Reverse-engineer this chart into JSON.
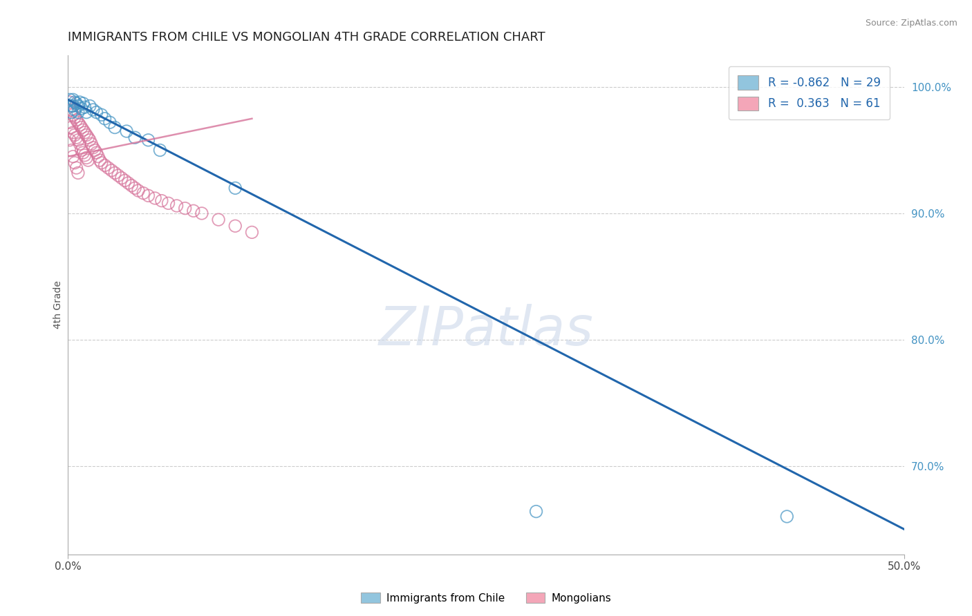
{
  "title": "IMMIGRANTS FROM CHILE VS MONGOLIAN 4TH GRADE CORRELATION CHART",
  "source": "Source: ZipAtlas.com",
  "ylabel": "4th Grade",
  "xlim": [
    0.0,
    0.5
  ],
  "ylim": [
    0.63,
    1.025
  ],
  "xtick_positions": [
    0.0,
    0.5
  ],
  "xticklabels": [
    "0.0%",
    "50.0%"
  ],
  "ytick_positions": [
    0.7,
    0.8,
    0.9,
    1.0
  ],
  "yticklabels": [
    "70.0%",
    "80.0%",
    "90.0%",
    "100.0%"
  ],
  "blue_color": "#92c5de",
  "blue_edge_color": "#4393c3",
  "pink_color": "#f4a6b8",
  "pink_edge_color": "#d6739a",
  "trend_color": "#2166ac",
  "legend_blue_R": "-0.862",
  "legend_blue_N": "29",
  "legend_pink_R": "0.363",
  "legend_pink_N": "61",
  "legend_label_blue": "Immigrants from Chile",
  "legend_label_pink": "Mongolians",
  "watermark": "ZIPatlas",
  "blue_scatter_x": [
    0.001,
    0.002,
    0.002,
    0.003,
    0.003,
    0.004,
    0.004,
    0.005,
    0.006,
    0.006,
    0.007,
    0.008,
    0.009,
    0.01,
    0.011,
    0.013,
    0.015,
    0.017,
    0.02,
    0.022,
    0.025,
    0.028,
    0.035,
    0.04,
    0.048,
    0.055,
    0.1,
    0.28,
    0.43
  ],
  "blue_scatter_y": [
    0.99,
    0.985,
    0.98,
    0.99,
    0.985,
    0.988,
    0.982,
    0.987,
    0.985,
    0.98,
    0.988,
    0.983,
    0.987,
    0.984,
    0.98,
    0.985,
    0.982,
    0.98,
    0.978,
    0.975,
    0.972,
    0.968,
    0.965,
    0.96,
    0.958,
    0.95,
    0.92,
    0.664,
    0.66
  ],
  "pink_scatter_x": [
    0.001,
    0.001,
    0.001,
    0.002,
    0.002,
    0.002,
    0.003,
    0.003,
    0.003,
    0.004,
    0.004,
    0.004,
    0.005,
    0.005,
    0.005,
    0.006,
    0.006,
    0.006,
    0.007,
    0.007,
    0.008,
    0.008,
    0.009,
    0.009,
    0.01,
    0.01,
    0.011,
    0.011,
    0.012,
    0.012,
    0.013,
    0.014,
    0.015,
    0.016,
    0.017,
    0.018,
    0.019,
    0.02,
    0.022,
    0.024,
    0.026,
    0.028,
    0.03,
    0.032,
    0.034,
    0.036,
    0.038,
    0.04,
    0.042,
    0.045,
    0.048,
    0.052,
    0.056,
    0.06,
    0.065,
    0.07,
    0.075,
    0.08,
    0.09,
    0.1,
    0.11
  ],
  "pink_scatter_y": [
    0.988,
    0.972,
    0.958,
    0.982,
    0.968,
    0.95,
    0.978,
    0.964,
    0.945,
    0.976,
    0.962,
    0.94,
    0.974,
    0.96,
    0.936,
    0.972,
    0.958,
    0.932,
    0.97,
    0.955,
    0.968,
    0.95,
    0.966,
    0.948,
    0.964,
    0.946,
    0.962,
    0.944,
    0.96,
    0.942,
    0.958,
    0.955,
    0.952,
    0.95,
    0.948,
    0.945,
    0.942,
    0.94,
    0.938,
    0.936,
    0.934,
    0.932,
    0.93,
    0.928,
    0.926,
    0.924,
    0.922,
    0.92,
    0.918,
    0.916,
    0.914,
    0.912,
    0.91,
    0.908,
    0.906,
    0.904,
    0.902,
    0.9,
    0.895,
    0.89,
    0.885
  ],
  "trend_x": [
    0.0,
    0.5
  ],
  "trend_y": [
    0.99,
    0.65
  ],
  "pink_trend_x": [
    0.0,
    0.11
  ],
  "pink_trend_y": [
    0.945,
    0.975
  ],
  "grid_color": "#cccccc",
  "grid_yticks": [
    0.7,
    0.8,
    0.9,
    1.0
  ]
}
